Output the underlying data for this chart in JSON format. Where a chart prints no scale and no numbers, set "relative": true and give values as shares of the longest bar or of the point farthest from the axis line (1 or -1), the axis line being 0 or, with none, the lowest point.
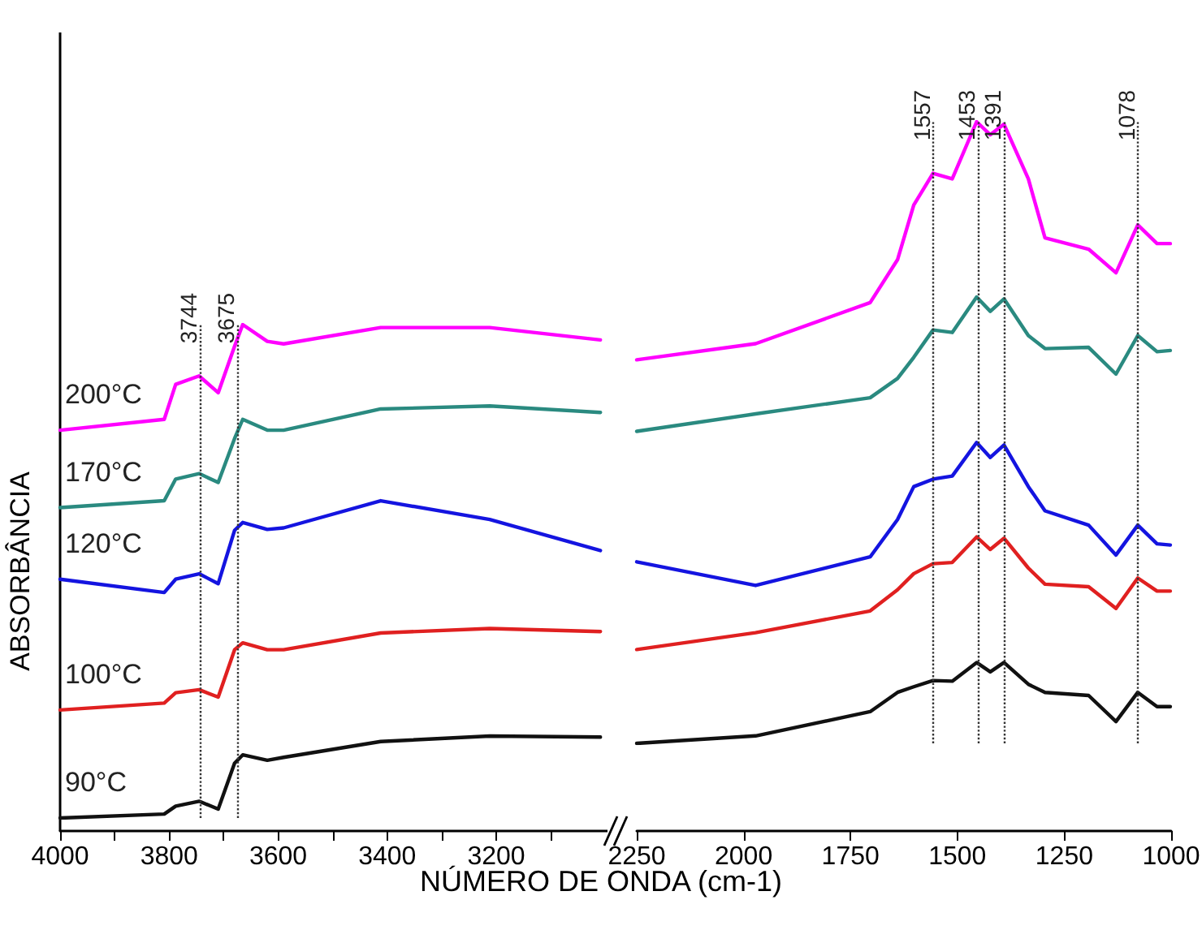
{
  "chart_data": [
    {
      "type": "line",
      "relative": true,
      "ylabel": "ABSORBÂNCIA",
      "xlabel": "NÚMERO DE ONDA (cm-1)",
      "xlim": [
        4000,
        2990
      ],
      "xticks": [
        4000,
        {
          "value": 3900,
          "label": null
        },
        3800,
        {
          "value": 3700,
          "label": null
        },
        3600,
        {
          "value": 3500,
          "label": null
        },
        3400,
        {
          "value": 3300,
          "label": null
        },
        3200,
        {
          "value": 3100,
          "label": null
        }
      ],
      "x": [
        4000,
        3809,
        3788,
        3745,
        3710,
        3680,
        3665,
        3620,
        3590,
        3412,
        3212,
        3009
      ],
      "series": [
        {
          "name": "200°C",
          "color": "#ff00ff",
          "values": [
            0.786,
            0.808,
            0.879,
            0.896,
            0.862,
            0.956,
            1.0,
            0.966,
            0.961,
            0.994,
            0.994,
            0.969
          ]
        },
        {
          "name": "170°C",
          "color": "#2a8a80",
          "values": [
            0.629,
            0.643,
            0.687,
            0.698,
            0.68,
            0.769,
            0.808,
            0.786,
            0.786,
            0.829,
            0.835,
            0.822
          ]
        },
        {
          "name": "120°C",
          "color": "#1414e0",
          "values": [
            0.484,
            0.457,
            0.484,
            0.495,
            0.475,
            0.583,
            0.599,
            0.585,
            0.588,
            0.643,
            0.605,
            0.542
          ]
        },
        {
          "name": "100°C",
          "color": "#e02020",
          "values": [
            0.219,
            0.233,
            0.254,
            0.26,
            0.245,
            0.341,
            0.355,
            0.341,
            0.341,
            0.375,
            0.384,
            0.378
          ]
        },
        {
          "name": "90°C",
          "color": "#111111",
          "values": [
            0.0,
            0.008,
            0.024,
            0.034,
            0.018,
            0.111,
            0.128,
            0.117,
            0.123,
            0.155,
            0.166,
            0.164
          ]
        }
      ],
      "ref_lines": [
        {
          "axis": "x",
          "value": 3744,
          "label": "3744",
          "line_style": "dotted",
          "color": "#333333"
        },
        {
          "axis": "x",
          "value": 3675,
          "label": "3675",
          "line_style": "dotted",
          "color": "#333333"
        }
      ],
      "grid": false,
      "legend": false,
      "marker": "none",
      "line_style": "solid"
    },
    {
      "type": "line",
      "relative": true,
      "xlim": [
        2250,
        1000
      ],
      "xticks": [
        2250,
        2000,
        1750,
        1500,
        1250,
        1000
      ],
      "x": [
        2250,
        1972,
        1704,
        1640,
        1602,
        1557,
        1512,
        1455,
        1423,
        1391,
        1334,
        1295,
        1193,
        1129,
        1078,
        1033,
        1002
      ],
      "series": [
        {
          "color": "#ff00ff",
          "values": [
            0.617,
            0.643,
            0.709,
            0.778,
            0.866,
            0.917,
            0.908,
            1.0,
            0.979,
            0.996,
            0.908,
            0.813,
            0.795,
            0.757,
            0.834,
            0.804,
            0.804
          ]
        },
        {
          "color": "#2a8a80",
          "values": [
            0.502,
            0.53,
            0.556,
            0.587,
            0.621,
            0.665,
            0.661,
            0.718,
            0.695,
            0.715,
            0.656,
            0.635,
            0.637,
            0.594,
            0.656,
            0.63,
            0.632
          ]
        },
        {
          "color": "#1414e0",
          "values": [
            0.292,
            0.254,
            0.3,
            0.36,
            0.413,
            0.425,
            0.43,
            0.484,
            0.46,
            0.48,
            0.413,
            0.374,
            0.351,
            0.303,
            0.351,
            0.321,
            0.319
          ]
        },
        {
          "color": "#e02020",
          "values": [
            0.151,
            0.178,
            0.213,
            0.247,
            0.273,
            0.289,
            0.291,
            0.332,
            0.312,
            0.33,
            0.282,
            0.256,
            0.252,
            0.217,
            0.266,
            0.245,
            0.245
          ]
        },
        {
          "color": "#111111",
          "values": [
            0.0,
            0.012,
            0.051,
            0.082,
            0.091,
            0.101,
            0.1,
            0.13,
            0.115,
            0.13,
            0.095,
            0.082,
            0.077,
            0.035,
            0.082,
            0.059,
            0.059
          ]
        }
      ],
      "ref_lines": [
        {
          "axis": "x",
          "value": 1557,
          "label": "1557",
          "line_style": "dotted",
          "color": "#333333"
        },
        {
          "axis": "x",
          "value": 1453,
          "label": "1453",
          "line_style": "dotted",
          "color": "#333333"
        },
        {
          "axis": "x",
          "value": 1391,
          "label": "1391",
          "line_style": "dotted",
          "color": "#333333"
        },
        {
          "axis": "x",
          "value": 1078,
          "label": "1078",
          "line_style": "dotted",
          "color": "#333333"
        }
      ],
      "grid": false,
      "legend": false,
      "marker": "none",
      "line_style": "solid"
    }
  ]
}
